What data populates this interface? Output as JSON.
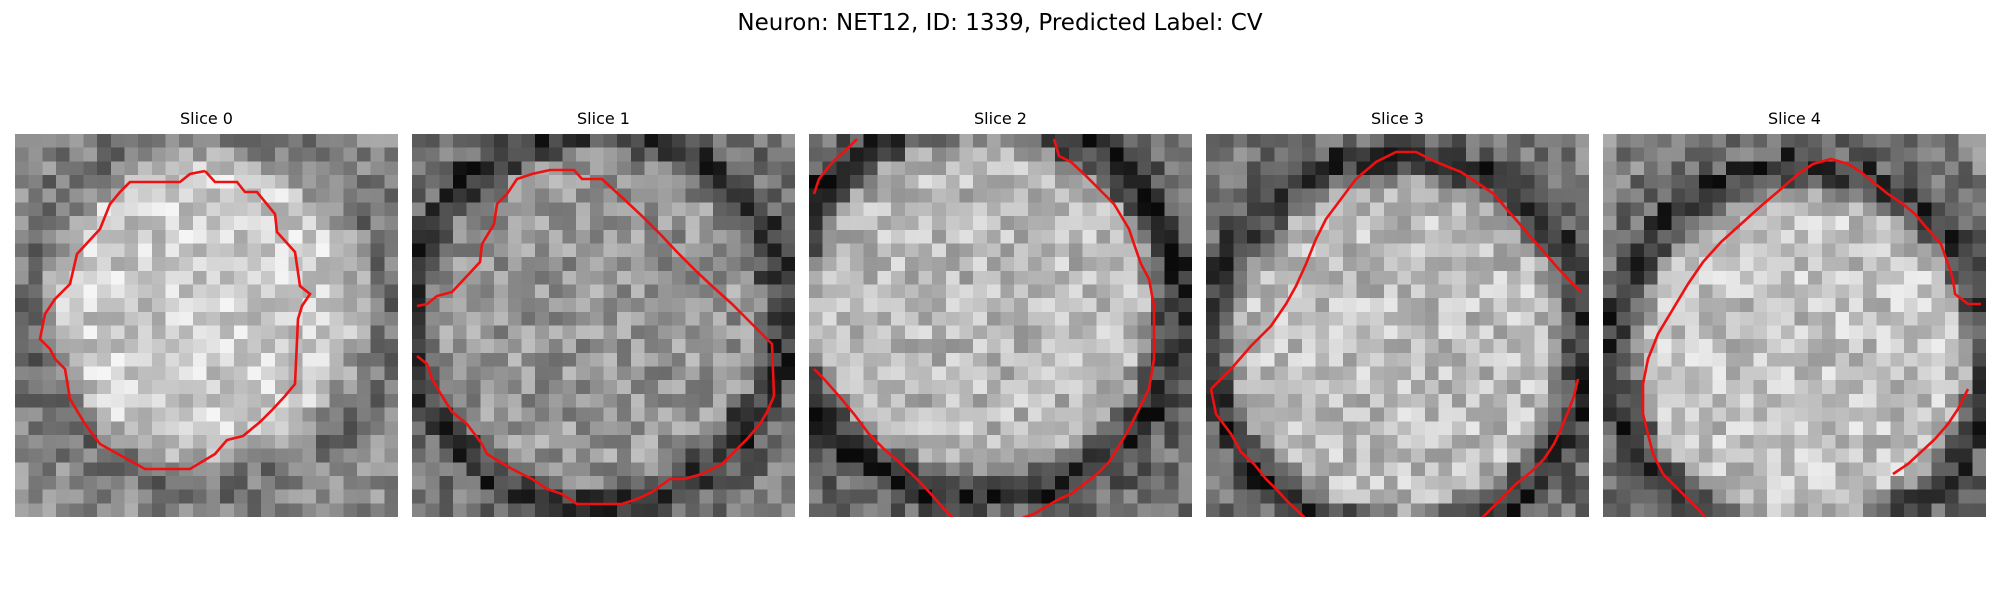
{
  "figure": {
    "title": "Neuron: NET12, ID: 1339, Predicted Label: CV",
    "contour_color": "#ee1111",
    "panels": [
      {
        "title": "Slice 0",
        "seed": 11,
        "blob": [
          0.5,
          0.45,
          0.43,
          0.42,
          205,
          110
        ],
        "dark_rim": false
      },
      {
        "title": "Slice 1",
        "seed": 23,
        "blob": [
          0.48,
          0.48,
          0.46,
          0.46,
          150,
          95
        ],
        "dark_rim": true
      },
      {
        "title": "Slice 2",
        "seed": 37,
        "blob": [
          0.45,
          0.45,
          0.48,
          0.46,
          185,
          85
        ],
        "dark_rim": true
      },
      {
        "title": "Slice 3",
        "seed": 51,
        "blob": [
          0.5,
          0.55,
          0.46,
          0.46,
          190,
          90
        ],
        "dark_rim": true
      },
      {
        "title": "Slice 4",
        "seed": 67,
        "blob": [
          0.52,
          0.58,
          0.46,
          0.46,
          195,
          95
        ],
        "dark_rim": true
      }
    ]
  }
}
